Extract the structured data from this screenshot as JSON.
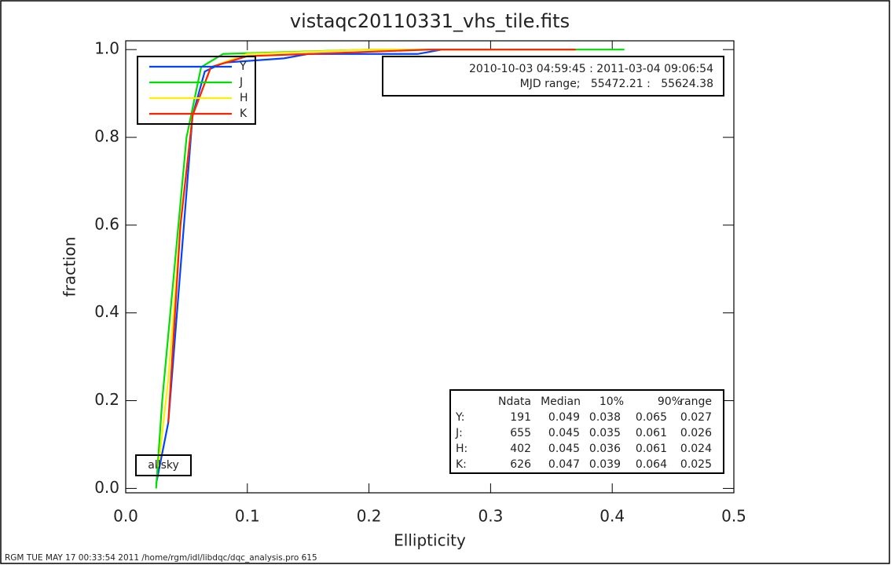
{
  "chart_data": {
    "type": "line",
    "title": "vistaqc20110331_vhs_tile.fits",
    "x_label": "Ellipticity",
    "y_label": "fraction",
    "xlim": [
      0,
      0.5
    ],
    "ylim": [
      -0.01,
      1.02
    ],
    "xticks": [
      {
        "value": 0,
        "label": "0.0"
      },
      0.1,
      0.2,
      0.3,
      0.4,
      0.5
    ],
    "yticks": [
      {
        "value": 0,
        "label": "0.0"
      },
      0.2,
      0.4,
      0.6,
      0.8,
      {
        "value": 1,
        "label": "1.0"
      }
    ],
    "series": [
      {
        "name": "Y",
        "color": "#0044ff",
        "x": [
          0.025,
          0.035,
          0.045,
          0.055,
          0.065,
          0.08,
          0.13,
          0.15,
          0.24,
          0.26,
          0.3
        ],
        "values": [
          0.01,
          0.15,
          0.5,
          0.85,
          0.95,
          0.97,
          0.98,
          0.99,
          0.99,
          1.0,
          1.0
        ]
      },
      {
        "name": "J",
        "color": "#00e000",
        "x": [
          0.025,
          0.03,
          0.04,
          0.05,
          0.062,
          0.08,
          0.2,
          0.41
        ],
        "values": [
          0.0,
          0.2,
          0.5,
          0.8,
          0.96,
          0.99,
          1.0,
          1.0
        ]
      },
      {
        "name": "H",
        "color": "#ffee00",
        "x": [
          0.027,
          0.035,
          0.045,
          0.055,
          0.07,
          0.1,
          0.2,
          0.32
        ],
        "values": [
          0.05,
          0.25,
          0.6,
          0.85,
          0.96,
          0.99,
          1.0,
          1.0
        ]
      },
      {
        "name": "K",
        "color": "#ff2000",
        "x": [
          0.035,
          0.045,
          0.055,
          0.07,
          0.1,
          0.25,
          0.37
        ],
        "values": [
          0.15,
          0.6,
          0.85,
          0.96,
          0.985,
          1.0,
          1.0
        ]
      }
    ],
    "date_range": "2010-10-03 04:59:45 : 2011-03-04 09:06:54",
    "mjd_range": "MJD range;   55472.21 :   55624.38",
    "region": "allsky",
    "stats_table": {
      "header": [
        "Ndata",
        "Median",
        "10%",
        "90%",
        "range"
      ],
      "rows": [
        [
          "Y:",
          191,
          0.049,
          0.038,
          0.065,
          0.027
        ],
        [
          "J:",
          655,
          0.045,
          0.035,
          0.061,
          0.026
        ],
        [
          "H:",
          402,
          0.045,
          0.036,
          0.061,
          0.024
        ],
        [
          "K:",
          626,
          0.047,
          0.039,
          0.064,
          0.025
        ]
      ]
    },
    "footer": "RGM TUE MAY 17 00:33:54 2011 /home/rgm/idl/libdqc/dqc_analysis.pro 615"
  }
}
